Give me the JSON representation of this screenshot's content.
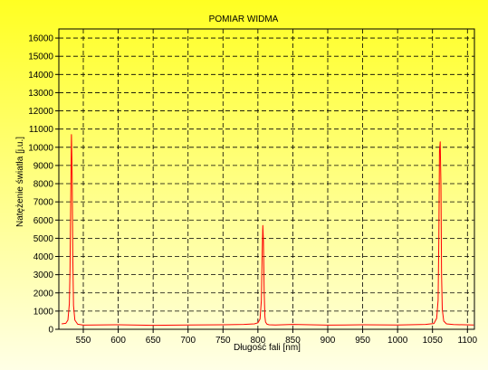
{
  "colors": {
    "background_top": "#ffff22",
    "background_bottom": "#ffffe6",
    "grid": "#000000",
    "series": "#ff0000",
    "frame": "#000000",
    "plot_background": "#ffffff00"
  },
  "chart_data": {
    "type": "line",
    "title": "POMIAR WIDMA",
    "xlabel": "Długość fali [nm]",
    "ylabel": "Natężenie światła [j.u.]",
    "xlim": [
      515,
      1110
    ],
    "ylim": [
      0,
      16500
    ],
    "xticks": [
      550,
      600,
      650,
      700,
      750,
      800,
      850,
      900,
      950,
      1000,
      1050,
      1100
    ],
    "yticks": [
      0,
      1000,
      2000,
      3000,
      4000,
      5000,
      6000,
      7000,
      8000,
      9000,
      10000,
      11000,
      12000,
      13000,
      14000,
      15000,
      16000
    ],
    "grid": true,
    "legend": "none",
    "series": [
      {
        "x": [
          519,
          525,
          528,
          530,
          531,
          532,
          533,
          534,
          535,
          536,
          538,
          542,
          550,
          600,
          650,
          700,
          750,
          780,
          795,
          800,
          803,
          805,
          806,
          807,
          808,
          809,
          810,
          811,
          813,
          816,
          825,
          850,
          900,
          950,
          1000,
          1040,
          1052,
          1056,
          1058,
          1059,
          1060,
          1061,
          1062,
          1063,
          1064,
          1066,
          1070,
          1080,
          1109
        ],
        "y": [
          300,
          330,
          500,
          1400,
          3200,
          7000,
          10700,
          8500,
          4000,
          1300,
          500,
          280,
          230,
          250,
          220,
          240,
          250,
          270,
          300,
          360,
          560,
          1600,
          4000,
          5700,
          4800,
          2000,
          700,
          400,
          280,
          250,
          240,
          270,
          230,
          250,
          240,
          270,
          320,
          600,
          1600,
          5000,
          9800,
          10300,
          8000,
          3000,
          1100,
          450,
          300,
          260,
          240
        ]
      }
    ]
  }
}
